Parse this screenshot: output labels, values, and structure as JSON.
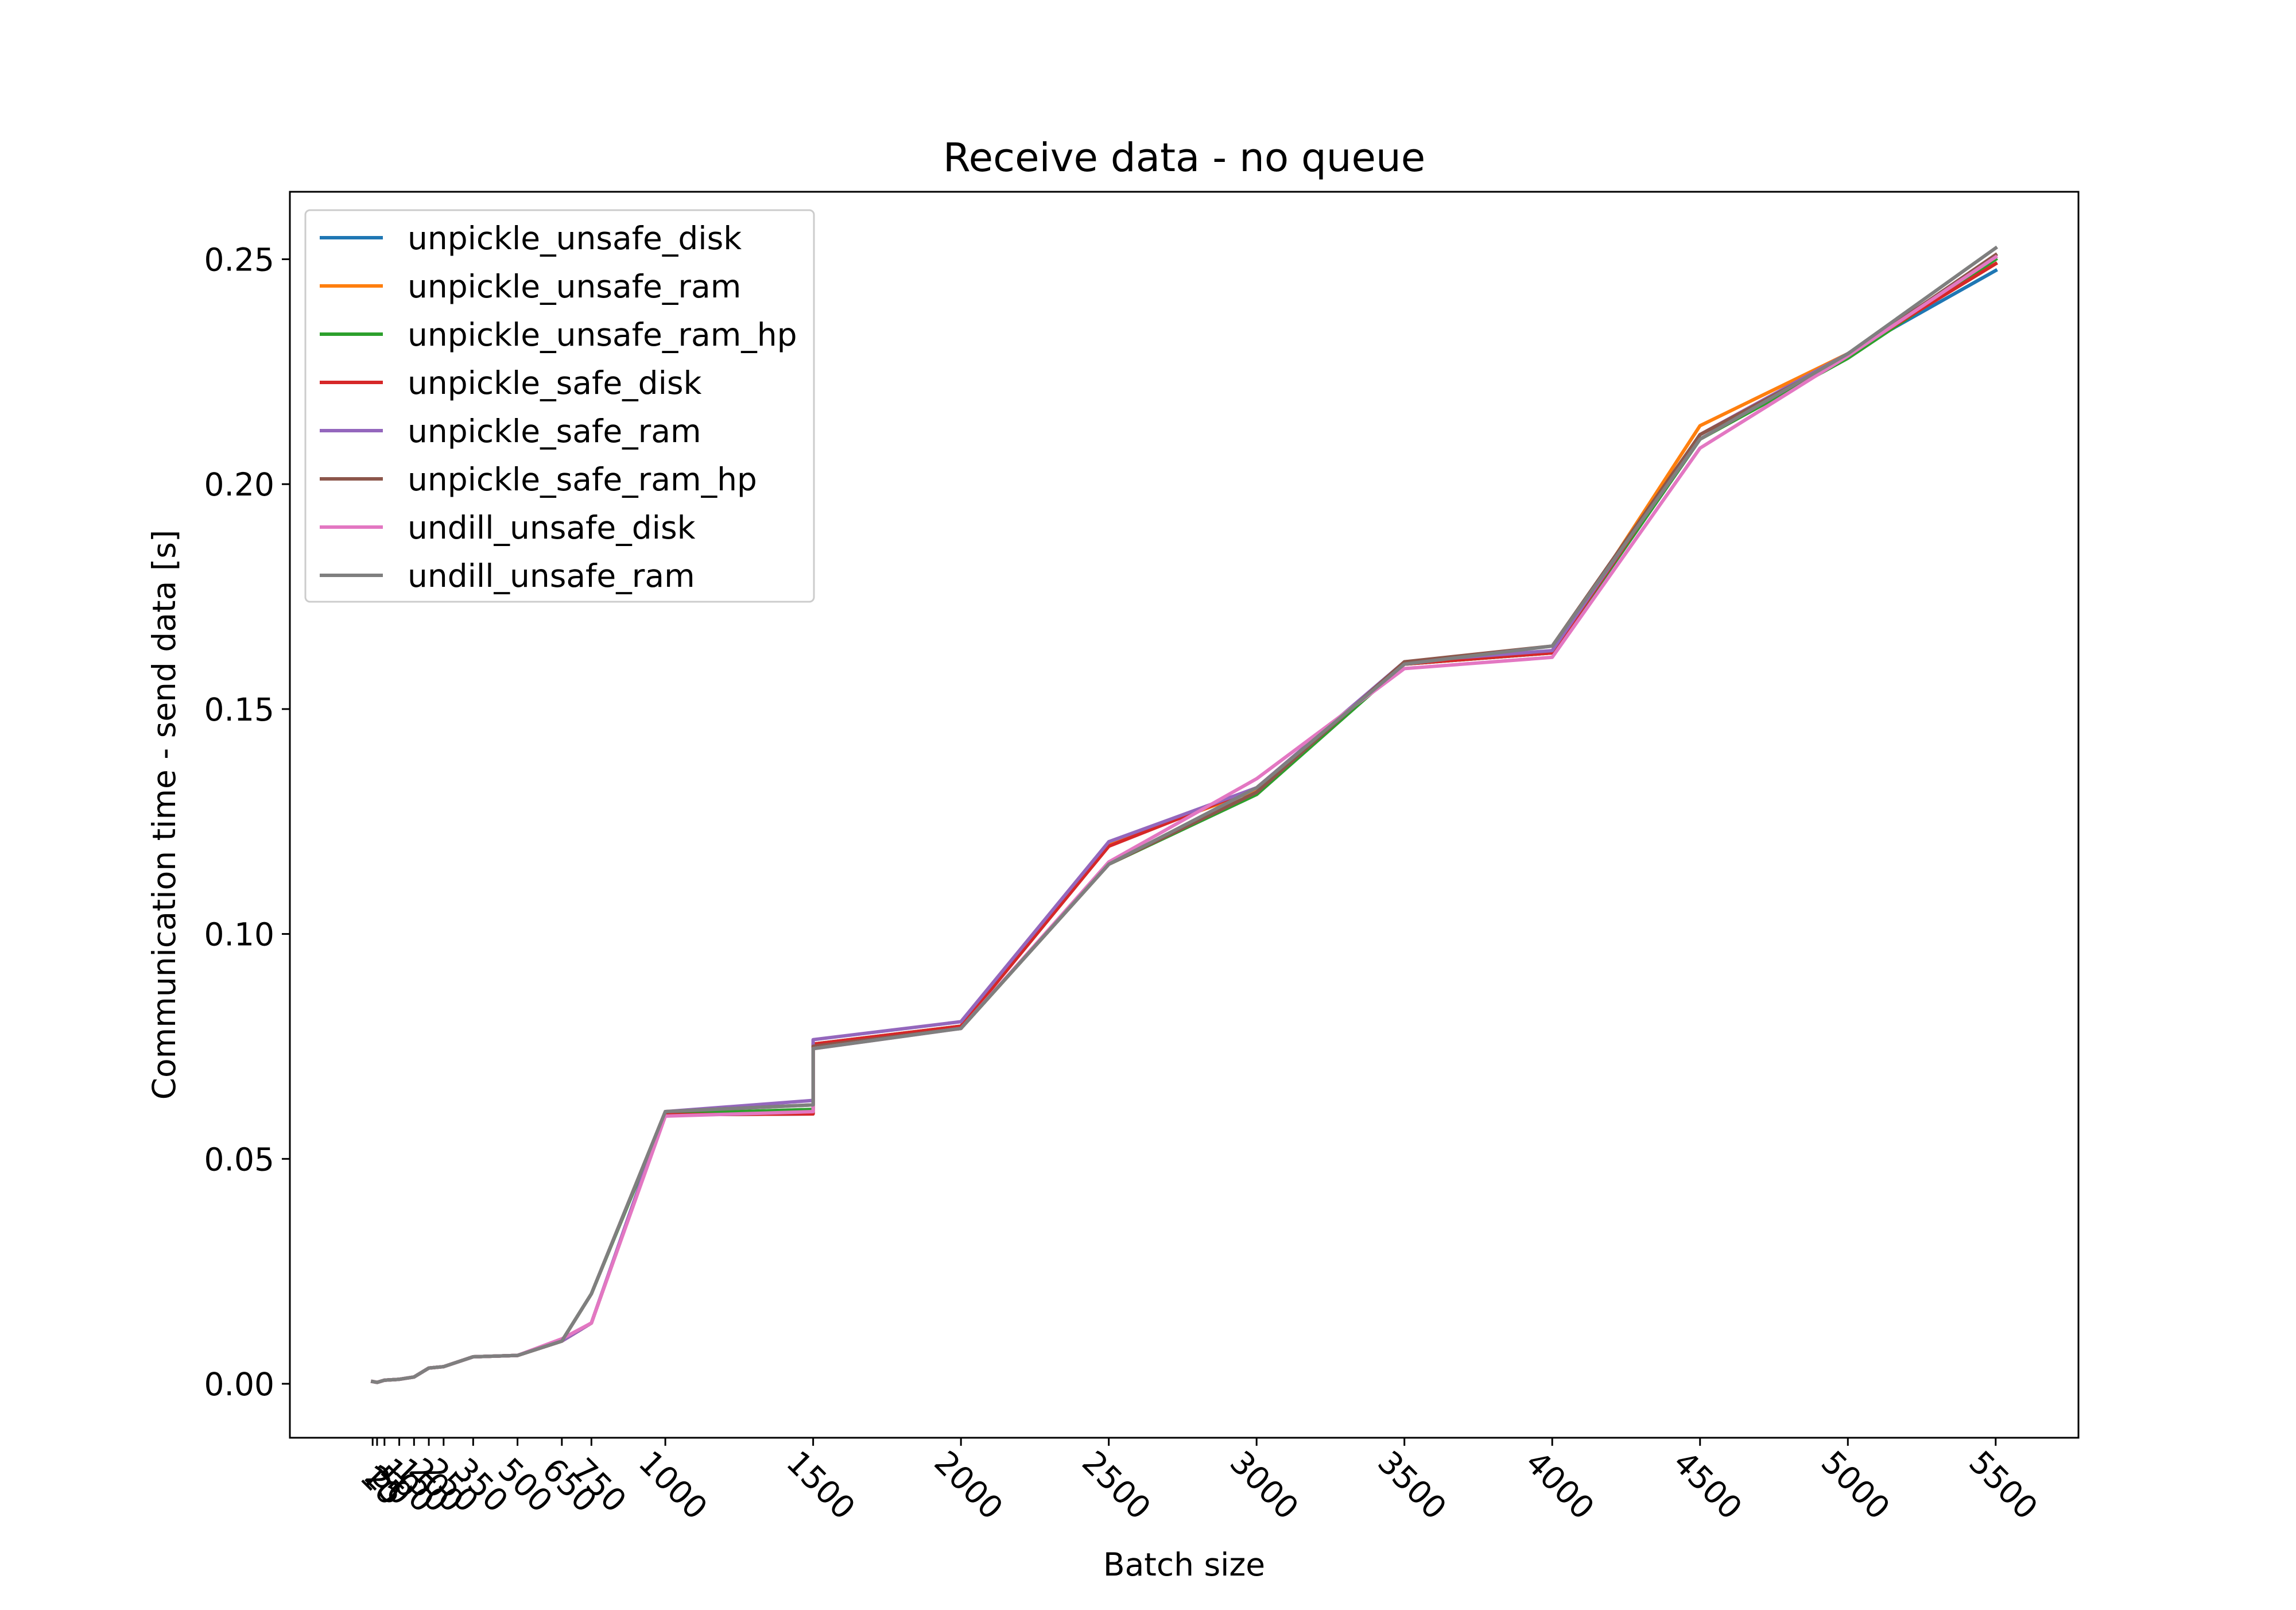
{
  "chart_data": {
    "type": "line",
    "title": "Receive data - no queue",
    "xlabel": "Batch size",
    "ylabel": "Communication time - send data [s]",
    "x": [
      10,
      25,
      50,
      100,
      150,
      200,
      250,
      350,
      500,
      650,
      750,
      1000,
      1500,
      1500,
      2000,
      2500,
      3000,
      3500,
      4000,
      4500,
      5000,
      5500
    ],
    "xticks": [
      10,
      25,
      50,
      100,
      150,
      200,
      250,
      350,
      500,
      650,
      750,
      1000,
      1500,
      2000,
      2500,
      3000,
      3500,
      4000,
      4500,
      5000,
      5500
    ],
    "xtick_labels": [
      "10",
      "25",
      "50",
      "100",
      "150",
      "200",
      "250",
      "350",
      "500",
      "650",
      "750",
      "1000",
      "1500",
      "2000",
      "2500",
      "3000",
      "3500",
      "4000",
      "4500",
      "5000",
      "5500"
    ],
    "xlim": [
      -270,
      5780
    ],
    "ylim": [
      -0.012,
      0.265
    ],
    "yticks": [
      0.0,
      0.05,
      0.1,
      0.15,
      0.2,
      0.25
    ],
    "ytick_labels": [
      "0.00",
      "0.05",
      "0.10",
      "0.15",
      "0.20",
      "0.25"
    ],
    "legend_position": "upper-left",
    "grid": false,
    "series": [
      {
        "name": "unpickle_unsafe_disk",
        "color": "#1f77b4",
        "values": [
          0.0005,
          0.0003,
          0.0008,
          0.001,
          0.0015,
          0.0035,
          0.0038,
          0.006,
          0.0063,
          0.0095,
          0.0135,
          0.0598,
          0.06,
          0.0755,
          0.0795,
          0.12,
          0.132,
          0.16,
          0.1625,
          0.21,
          0.229,
          0.2475
        ]
      },
      {
        "name": "unpickle_unsafe_ram",
        "color": "#ff7f0e",
        "values": [
          0.0005,
          0.0003,
          0.0008,
          0.001,
          0.0015,
          0.0035,
          0.0038,
          0.006,
          0.0063,
          0.0095,
          0.0135,
          0.06,
          0.0605,
          0.0755,
          0.0795,
          0.12,
          0.132,
          0.16,
          0.1625,
          0.213,
          0.229,
          0.249
        ]
      },
      {
        "name": "unpickle_unsafe_ram_hp",
        "color": "#2ca02c",
        "values": [
          0.0005,
          0.0003,
          0.0008,
          0.001,
          0.0015,
          0.0035,
          0.0038,
          0.006,
          0.0063,
          0.0095,
          0.02,
          0.06,
          0.061,
          0.075,
          0.079,
          0.1155,
          0.131,
          0.16,
          0.1625,
          0.21,
          0.228,
          0.25
        ]
      },
      {
        "name": "unpickle_safe_disk",
        "color": "#d62728",
        "values": [
          0.0005,
          0.0003,
          0.0008,
          0.001,
          0.0015,
          0.0035,
          0.0038,
          0.006,
          0.0063,
          0.0095,
          0.0135,
          0.0598,
          0.06,
          0.0755,
          0.0795,
          0.1195,
          0.1325,
          0.16,
          0.1625,
          0.211,
          0.229,
          0.249
        ]
      },
      {
        "name": "unpickle_safe_ram",
        "color": "#9467bd",
        "values": [
          0.0005,
          0.0003,
          0.0008,
          0.001,
          0.0015,
          0.0035,
          0.0038,
          0.006,
          0.0063,
          0.0095,
          0.0135,
          0.0605,
          0.063,
          0.0765,
          0.0805,
          0.1205,
          0.1325,
          0.1605,
          0.163,
          0.211,
          0.229,
          0.2505
        ]
      },
      {
        "name": "unpickle_safe_ram_hp",
        "color": "#8c564b",
        "values": [
          0.0005,
          0.0003,
          0.0008,
          0.001,
          0.0015,
          0.0035,
          0.0038,
          0.006,
          0.0063,
          0.0095,
          0.02,
          0.0605,
          0.062,
          0.075,
          0.079,
          0.1155,
          0.1315,
          0.1605,
          0.164,
          0.211,
          0.2285,
          0.251
        ]
      },
      {
        "name": "undill_unsafe_disk",
        "color": "#e377c2",
        "values": [
          0.0005,
          0.0003,
          0.0008,
          0.001,
          0.0015,
          0.0035,
          0.0038,
          0.006,
          0.0063,
          0.01,
          0.0135,
          0.0595,
          0.0605,
          0.0745,
          0.079,
          0.116,
          0.1345,
          0.159,
          0.1615,
          0.208,
          0.2285,
          0.2505
        ]
      },
      {
        "name": "undill_unsafe_ram",
        "color": "#7f7f7f",
        "values": [
          0.0005,
          0.0003,
          0.0008,
          0.001,
          0.0015,
          0.0035,
          0.0038,
          0.006,
          0.0063,
          0.0095,
          0.02,
          0.0605,
          0.062,
          0.0745,
          0.079,
          0.1155,
          0.1325,
          0.16,
          0.164,
          0.21,
          0.229,
          0.2525
        ]
      }
    ]
  }
}
